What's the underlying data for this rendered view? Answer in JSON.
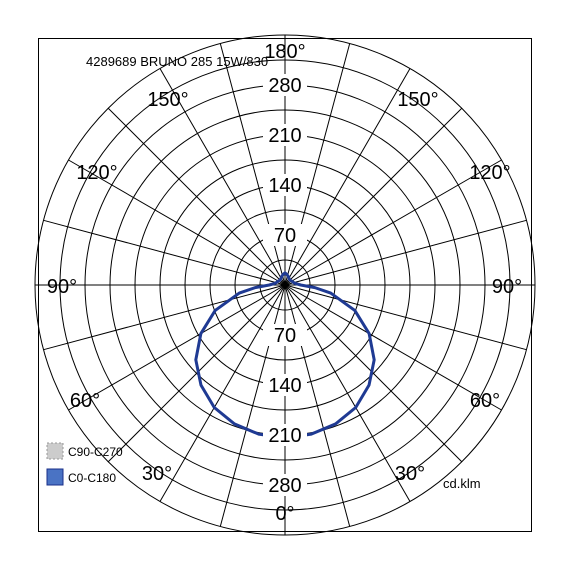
{
  "chart_data": {
    "type": "polar",
    "title": "4289689 BRUNO 285 15W/830",
    "unit_label": "cd.klm",
    "angle_labels": [
      "180°",
      "150°",
      "150°",
      "120°",
      "120°",
      "90°",
      "90°",
      "60°",
      "60°",
      "30°",
      "30°",
      "0°"
    ],
    "radial_ticks_upper": [
      "70",
      "140",
      "210",
      "280"
    ],
    "radial_ticks_lower": [
      "70",
      "140",
      "210",
      "280"
    ],
    "rmax": 350,
    "grid": true,
    "legend": {
      "placement": "bottom-left",
      "items": [
        {
          "name": "C90-C270",
          "color": "#cccccc",
          "border": "#999999",
          "dashed": true
        },
        {
          "name": "C0-C180",
          "color": "#4a73c4",
          "border": "#1a2f8a",
          "dashed": false
        }
      ]
    },
    "series": [
      {
        "name": "C0-C180",
        "color": "#1f3a93",
        "angles_deg": [
          0,
          10,
          20,
          30,
          40,
          50,
          60,
          70,
          80,
          85,
          90,
          100,
          110,
          120,
          130,
          140,
          150,
          160,
          170,
          180
        ],
        "values": [
          214,
          212,
          207,
          198,
          183,
          163,
          136,
          104,
          65,
          42,
          22,
          14,
          12,
          11,
          10,
          10,
          11,
          13,
          15,
          17
        ]
      }
    ]
  }
}
